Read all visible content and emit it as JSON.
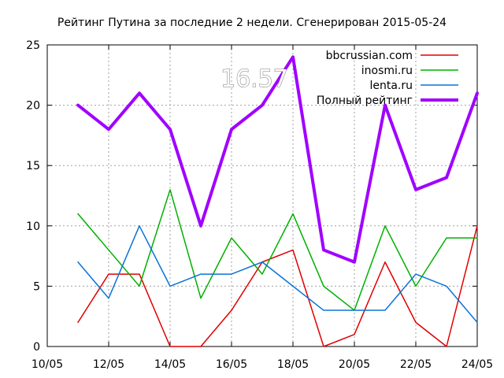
{
  "overlay_value": "16.57",
  "chart_data": {
    "type": "line",
    "title": "Рейтинг Путина за последние 2 недели. Сгенерирован 2015-05-24",
    "xlabel": "",
    "ylabel": "",
    "grid": true,
    "legend_position": "top-right",
    "x": [
      "11/05",
      "12/05",
      "13/05",
      "14/05",
      "15/05",
      "16/05",
      "17/05",
      "18/05",
      "19/05",
      "20/05",
      "21/05",
      "22/05",
      "23/05",
      "24/05"
    ],
    "xlim": [
      "10/05",
      "24/05"
    ],
    "ylim": [
      0,
      25
    ],
    "x_ticks": [
      "10/05",
      "12/05",
      "14/05",
      "16/05",
      "18/05",
      "20/05",
      "22/05",
      "24/05"
    ],
    "y_ticks": [
      "0",
      "5",
      "10",
      "15",
      "20",
      "25"
    ],
    "series": [
      {
        "name": "bbcrussian.com",
        "color": "#e00000",
        "width": 1.5,
        "values": [
          2,
          6,
          6,
          0,
          0,
          3,
          7,
          8,
          0,
          1,
          7,
          2,
          0,
          10
        ]
      },
      {
        "name": "inosmi.ru",
        "color": "#00b000",
        "width": 1.5,
        "values": [
          11,
          8,
          5,
          13,
          4,
          9,
          6,
          11,
          5,
          3,
          10,
          5,
          9,
          9
        ]
      },
      {
        "name": "lenta.ru",
        "color": "#0a73d8",
        "width": 1.5,
        "values": [
          7,
          4,
          10,
          5,
          6,
          6,
          7,
          5,
          3,
          3,
          3,
          6,
          5,
          2
        ]
      },
      {
        "name": "Полный рейтинг",
        "color": "#a000ff",
        "width": 4,
        "values": [
          20,
          18,
          21,
          18,
          10,
          18,
          20,
          24,
          8,
          7,
          20,
          13,
          14,
          21
        ]
      }
    ]
  }
}
